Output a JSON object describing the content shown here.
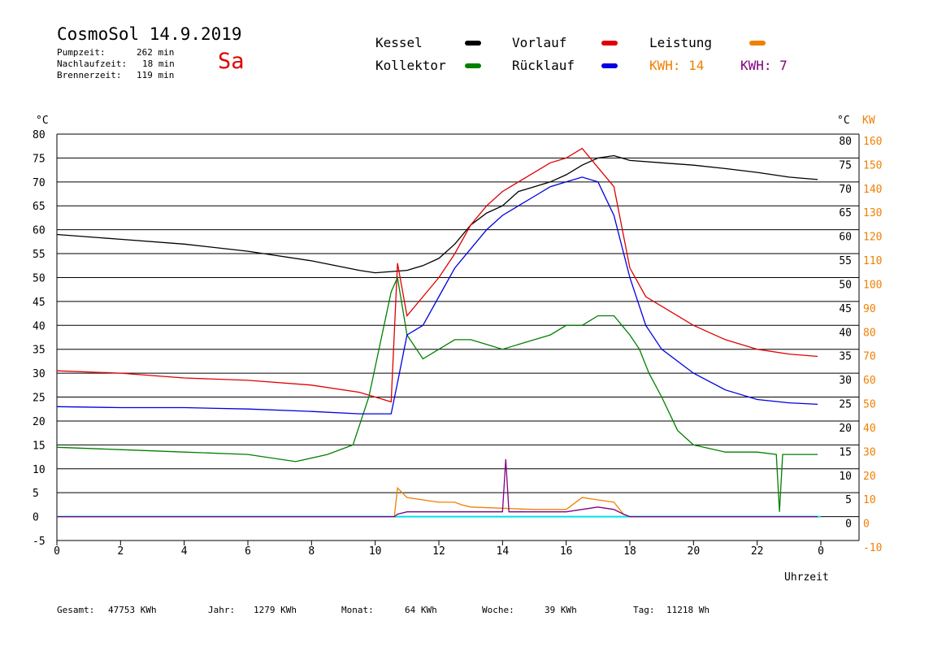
{
  "header": {
    "title": "CosmoSol 14.9.2019",
    "day": "Sa",
    "stats": [
      {
        "label": "Pumpzeit:",
        "value": "262 min"
      },
      {
        "label": "Nachlaufzeit:",
        "value": "18 min"
      },
      {
        "label": "Brennerzeit:",
        "value": "119 min"
      }
    ]
  },
  "legend": [
    {
      "label": "Kessel",
      "color": "#000000"
    },
    {
      "label": "Vorlauf",
      "color": "#e00000"
    },
    {
      "label": "Leistung",
      "color": "#f08000"
    },
    {
      "label": "Kollektor",
      "color": "#008000"
    },
    {
      "label": "Rücklauf",
      "color": "#0000e0"
    }
  ],
  "kwh": [
    {
      "text": "KWH: 14",
      "color": "#f08000"
    },
    {
      "text": "KWH: 7",
      "color": "#800080"
    }
  ],
  "footer": [
    {
      "label": "Gesamt:",
      "value": "47753 KWh"
    },
    {
      "label": "Jahr:",
      "value": "1279 KWh"
    },
    {
      "label": "Monat:",
      "value": "64 KWh"
    },
    {
      "label": "Woche:",
      "value": "39 KWh"
    },
    {
      "label": "Tag:",
      "value": "11218 Wh"
    }
  ],
  "chart_data": {
    "type": "line",
    "xlabel": "Uhrzeit",
    "ylabel_left": "°C",
    "ylabel_right_1": "°C",
    "ylabel_right_2": "KW",
    "xlim": [
      0,
      24
    ],
    "ylim": [
      -5,
      80
    ],
    "y2lim": [
      -10,
      160
    ],
    "xticks": [
      "0",
      "2",
      "4",
      "6",
      "8",
      "10",
      "12",
      "14",
      "16",
      "18",
      "20",
      "22",
      "0"
    ],
    "yticks_left": [
      "80",
      "75",
      "70",
      "65",
      "60",
      "55",
      "50",
      "45",
      "40",
      "35",
      "30",
      "25",
      "20",
      "15",
      "10",
      "5",
      "0",
      "-5"
    ],
    "yticks_right_c": [
      "80",
      "75",
      "70",
      "65",
      "60",
      "55",
      "50",
      "45",
      "40",
      "35",
      "30",
      "25",
      "20",
      "15",
      "10",
      "5",
      "0"
    ],
    "yticks_right_kw": [
      "160",
      "150",
      "140",
      "130",
      "120",
      "110",
      "100",
      "90",
      "80",
      "70",
      "60",
      "50",
      "40",
      "30",
      "20",
      "10",
      "0",
      "-10"
    ],
    "grid": true,
    "series": [
      {
        "name": "Kessel",
        "color": "#000000",
        "x": [
          0,
          2,
          4,
          6,
          8,
          9.5,
          10,
          11,
          11.5,
          12,
          12.5,
          13,
          13.5,
          14,
          14.5,
          15,
          15.5,
          16,
          16.5,
          17,
          17.5,
          18,
          19,
          20,
          21,
          22,
          23,
          23.9
        ],
        "y": [
          59,
          58,
          57,
          55.5,
          53.5,
          51.5,
          51,
          51.5,
          52.5,
          54,
          57,
          61,
          63.5,
          65,
          68,
          69,
          70,
          71.5,
          73.5,
          75,
          75.5,
          74.5,
          74,
          73.5,
          72.8,
          72,
          71,
          70.5
        ]
      },
      {
        "name": "Vorlauf",
        "color": "#e00000",
        "x": [
          0,
          2,
          4,
          6,
          8,
          9.5,
          10.5,
          10.7,
          11,
          11.5,
          12,
          12.5,
          13,
          13.5,
          14,
          14.5,
          15,
          15.5,
          16,
          16.5,
          17,
          17.5,
          18,
          18.5,
          19,
          20,
          21,
          22,
          23,
          23.9
        ],
        "y": [
          30.5,
          30,
          29,
          28.5,
          27.5,
          26,
          24,
          53,
          42,
          46,
          50,
          55,
          61,
          65,
          68,
          70,
          72,
          74,
          75,
          77,
          73,
          69,
          52,
          46,
          44,
          40,
          37,
          35,
          34,
          33.5
        ]
      },
      {
        "name": "Kollektor",
        "color": "#008000",
        "x": [
          0,
          2,
          4,
          6,
          7.5,
          8.5,
          9.3,
          9.8,
          10.5,
          10.7,
          11,
          11.5,
          12,
          12.5,
          13,
          13.5,
          14,
          14.5,
          15,
          15.5,
          16,
          16.5,
          17,
          17.5,
          18,
          18.3,
          18.6,
          19,
          19.5,
          20,
          21,
          22,
          22.6,
          22.7,
          22.8,
          23,
          23.9
        ],
        "y": [
          14.5,
          14,
          13.5,
          13,
          11.5,
          13,
          15,
          25,
          47,
          50,
          38,
          33,
          35,
          37,
          37,
          36,
          35,
          36,
          37,
          38,
          40,
          40,
          42,
          42,
          38,
          35,
          30,
          25,
          18,
          15,
          13.5,
          13.5,
          13,
          1,
          13,
          13,
          13
        ]
      },
      {
        "name": "Rücklauf",
        "color": "#0000e0",
        "x": [
          0,
          2,
          4,
          6,
          8,
          9.5,
          10.5,
          10.7,
          11,
          11.5,
          12,
          12.5,
          13,
          13.5,
          14,
          14.5,
          15,
          15.5,
          16,
          16.5,
          17,
          17.5,
          18,
          18.5,
          19,
          20,
          21,
          22,
          23,
          23.9
        ],
        "y": [
          23,
          22.8,
          22.8,
          22.5,
          22,
          21.5,
          21.5,
          28,
          38,
          40,
          46,
          52,
          56,
          60,
          63,
          65,
          67,
          69,
          70,
          71,
          70,
          63,
          50,
          40,
          35,
          30,
          26.5,
          24.5,
          23.8,
          23.5
        ]
      },
      {
        "name": "Leistung",
        "color": "#f08000",
        "axis": "KW",
        "x": [
          0,
          10.6,
          10.7,
          11,
          11.5,
          12,
          12.5,
          12.7,
          13,
          14,
          15,
          16,
          16.5,
          17,
          17.5,
          17.8,
          18,
          23.9
        ],
        "y": [
          0,
          0,
          12,
          8,
          7,
          6,
          6,
          5,
          4,
          3.5,
          3,
          3,
          8,
          7,
          6,
          1,
          0,
          0
        ]
      },
      {
        "name": "KWH: 7",
        "color": "#800080",
        "axis": "KW",
        "x": [
          0,
          10.6,
          10.7,
          11,
          12,
          13,
          14,
          14.1,
          14.2,
          14.5,
          15,
          16,
          17,
          17.5,
          17.8,
          18,
          23.9
        ],
        "y": [
          0,
          0,
          1,
          2,
          2,
          2,
          2,
          24,
          2,
          2,
          2,
          2,
          4,
          3,
          1,
          0,
          0
        ]
      }
    ]
  }
}
